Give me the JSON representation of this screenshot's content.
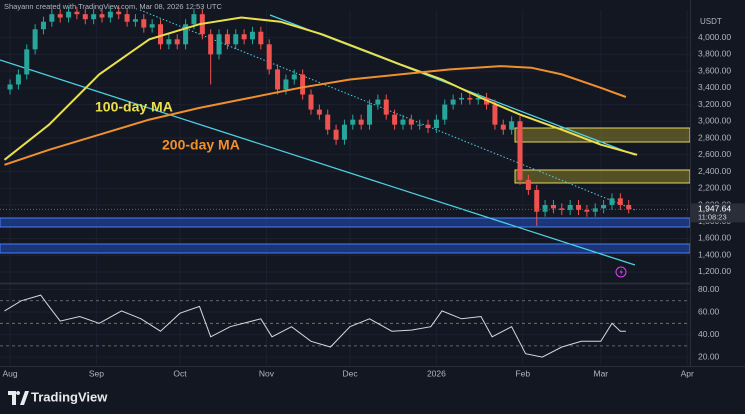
{
  "header": {
    "attribution": "Shayann created with TradingView.com, Mar 08, 2026 12:53 UTC",
    "currency": "USDT"
  },
  "footer": {
    "brand": "TradingView"
  },
  "chart_data": [
    {
      "type": "candlestick",
      "up_color": "#26a69a",
      "down_color": "#ef5350",
      "xlim": [
        -3.6,
        244
      ],
      "ylim": [
        1080,
        4330
      ],
      "grid": true,
      "yticks": [
        {
          "value": 1200,
          "label": "1,200.00"
        },
        {
          "value": 1400,
          "label": "1,400.00"
        },
        {
          "value": 1600,
          "label": "1,600.00"
        },
        {
          "value": 1800,
          "label": "1,800.00"
        },
        {
          "value": 2000,
          "label": "2,000.00"
        },
        {
          "value": 2200,
          "label": "2,200.00"
        },
        {
          "value": 2400,
          "label": "2,400.00"
        },
        {
          "value": 2600,
          "label": "2,600.00"
        },
        {
          "value": 2800,
          "label": "2,800.00"
        },
        {
          "value": 3000,
          "label": "3,000.00"
        },
        {
          "value": 3200,
          "label": "3,200.00"
        },
        {
          "value": 3400,
          "label": "3,400.00"
        },
        {
          "value": 3600,
          "label": "3,600.00"
        },
        {
          "value": 3800,
          "label": "3,800.00"
        },
        {
          "value": 4000,
          "label": "4,000.00"
        }
      ],
      "x": [
        0,
        3,
        6,
        9,
        12,
        15,
        18,
        21,
        24,
        27,
        30,
        33,
        36,
        39,
        42,
        45,
        48,
        51,
        54,
        57,
        60,
        63,
        66,
        69,
        72,
        75,
        78,
        81,
        84,
        87,
        90,
        93,
        96,
        99,
        102,
        105,
        108,
        111,
        114,
        117,
        120,
        123,
        126,
        129,
        132,
        135,
        138,
        141,
        144,
        147,
        150,
        153,
        156,
        159,
        162,
        165,
        168,
        171,
        174,
        177,
        180,
        183,
        186,
        189,
        192,
        195,
        198,
        201,
        204,
        207,
        210,
        213,
        216,
        219,
        222
      ],
      "open": [
        3380,
        3440,
        3560,
        3860,
        4100,
        4190,
        4280,
        4240,
        4310,
        4280,
        4220,
        4280,
        4240,
        4310,
        4280,
        4190,
        4220,
        4120,
        4160,
        3920,
        3980,
        3920,
        4160,
        4280,
        4040,
        3800,
        4040,
        3920,
        4040,
        3980,
        4070,
        3920,
        3620,
        3380,
        3500,
        3560,
        3320,
        3140,
        3080,
        2900,
        2780,
        2960,
        3020,
        2960,
        3200,
        3260,
        3080,
        2960,
        3020,
        2960,
        2960,
        2920,
        3020,
        3200,
        3260,
        3280,
        3260,
        3280,
        3200,
        2960,
        2900,
        3000,
        2300,
        2180,
        1920,
        2000,
        1960,
        1940,
        2000,
        1940,
        1920,
        1960,
        2000,
        2080,
        2000
      ],
      "high": [
        3500,
        3620,
        3920,
        4160,
        4250,
        4340,
        4340,
        4370,
        4370,
        4340,
        4340,
        4340,
        4370,
        4370,
        4340,
        4280,
        4280,
        4220,
        4220,
        4040,
        4040,
        4220,
        4340,
        4340,
        4100,
        4100,
        4100,
        4100,
        4100,
        4130,
        4130,
        3980,
        3680,
        3560,
        3620,
        3620,
        3380,
        3200,
        3140,
        2960,
        3020,
        3080,
        3080,
        3260,
        3320,
        3320,
        3140,
        3080,
        3080,
        3020,
        3020,
        3080,
        3260,
        3320,
        3340,
        3340,
        3340,
        3340,
        3260,
        3020,
        3060,
        3060,
        2360,
        2240,
        2060,
        2060,
        2020,
        2060,
        2060,
        2000,
        2020,
        2060,
        2140,
        2140,
        2060
      ],
      "low": [
        3320,
        3380,
        3500,
        3800,
        4040,
        4130,
        4180,
        4180,
        4220,
        4160,
        4160,
        4180,
        4180,
        4220,
        4130,
        4130,
        4060,
        4060,
        3860,
        3860,
        3860,
        3860,
        4100,
        3980,
        3440,
        3740,
        3860,
        3860,
        3920,
        3920,
        3860,
        3560,
        3320,
        3320,
        3440,
        3260,
        3080,
        3020,
        2840,
        2720,
        2720,
        2900,
        2900,
        2900,
        3140,
        3020,
        2900,
        2900,
        2900,
        2900,
        2860,
        2860,
        2960,
        3140,
        3200,
        3200,
        3200,
        3140,
        2900,
        2840,
        2840,
        2240,
        2120,
        1750,
        1860,
        1900,
        1880,
        1880,
        1880,
        1860,
        1860,
        1900,
        1940,
        1940,
        1900
      ],
      "close": [
        3440,
        3560,
        3860,
        4100,
        4190,
        4280,
        4240,
        4310,
        4280,
        4220,
        4280,
        4240,
        4310,
        4280,
        4190,
        4220,
        4120,
        4160,
        3920,
        3980,
        3920,
        4160,
        4280,
        4040,
        3800,
        4040,
        3920,
        4040,
        3980,
        4070,
        3920,
        3620,
        3380,
        3500,
        3560,
        3320,
        3140,
        3080,
        2900,
        2780,
        2960,
        3020,
        2960,
        3200,
        3260,
        3080,
        2960,
        3020,
        2960,
        2960,
        2920,
        3020,
        3200,
        3260,
        3280,
        3260,
        3280,
        3200,
        2960,
        2900,
        3000,
        2300,
        2180,
        1920,
        2000,
        1960,
        1940,
        2000,
        1940,
        1920,
        1960,
        2000,
        2080,
        2000,
        1947.64
      ],
      "last_price": {
        "value": 1947.64,
        "label": "1,947.64"
      },
      "countdown": "11:08:23",
      "series": [
        {
          "name": "100-day MA",
          "color": "#eae04c",
          "x": [
            -2,
            14,
            32,
            50,
            68,
            83,
            97,
            112,
            126,
            140,
            155,
            169,
            183,
            198,
            212,
            225
          ],
          "values": [
            2540,
            2960,
            3560,
            3980,
            4160,
            4240,
            4190,
            4040,
            3860,
            3680,
            3500,
            3280,
            3080,
            2900,
            2720,
            2600
          ]
        },
        {
          "name": "200-day MA",
          "color": "#f0902c",
          "x": [
            -2,
            14,
            32,
            50,
            68,
            86,
            104,
            122,
            140,
            158,
            176,
            187,
            198,
            212,
            221
          ],
          "values": [
            2480,
            2660,
            2840,
            3020,
            3160,
            3280,
            3400,
            3500,
            3560,
            3620,
            3660,
            3640,
            3560,
            3400,
            3290
          ]
        }
      ]
    },
    {
      "type": "line",
      "xlim": [
        -3.6,
        244
      ],
      "ylim": [
        13,
        84
      ],
      "grid": true,
      "yticks": [
        {
          "value": 20,
          "label": "20.00"
        },
        {
          "value": 40,
          "label": "40.00"
        },
        {
          "value": 60,
          "label": "60.00"
        },
        {
          "value": 80,
          "label": "80.00"
        }
      ],
      "xticks": [
        {
          "value": 0,
          "label": "Aug"
        },
        {
          "value": 31,
          "label": "Sep"
        },
        {
          "value": 61,
          "label": "Oct"
        },
        {
          "value": 92,
          "label": "Nov"
        },
        {
          "value": 122,
          "label": "Dec"
        },
        {
          "value": 153,
          "label": "2026"
        },
        {
          "value": 184,
          "label": "Feb"
        },
        {
          "value": 212,
          "label": "Mar"
        },
        {
          "value": 243,
          "label": "Apr"
        }
      ],
      "levels": [
        70,
        50,
        30
      ],
      "series": [
        {
          "color": "#d5d8df",
          "x": [
            -2,
            4,
            11,
            14,
            18,
            25,
            32,
            40,
            47,
            54,
            61,
            68,
            72,
            79,
            90,
            94,
            101,
            108,
            115,
            122,
            129,
            137,
            144,
            151,
            155,
            162,
            169,
            173,
            180,
            185,
            191,
            198,
            205,
            212,
            216,
            219,
            221
          ],
          "values": [
            61,
            70,
            75,
            65,
            52,
            56,
            50,
            61,
            54,
            43,
            59,
            65,
            38,
            47,
            54,
            38,
            47,
            34,
            29,
            47,
            54,
            43,
            44,
            47,
            61,
            54,
            56,
            38,
            47,
            23,
            20,
            29,
            34,
            34,
            50,
            43,
            43
          ]
        }
      ]
    }
  ]
}
